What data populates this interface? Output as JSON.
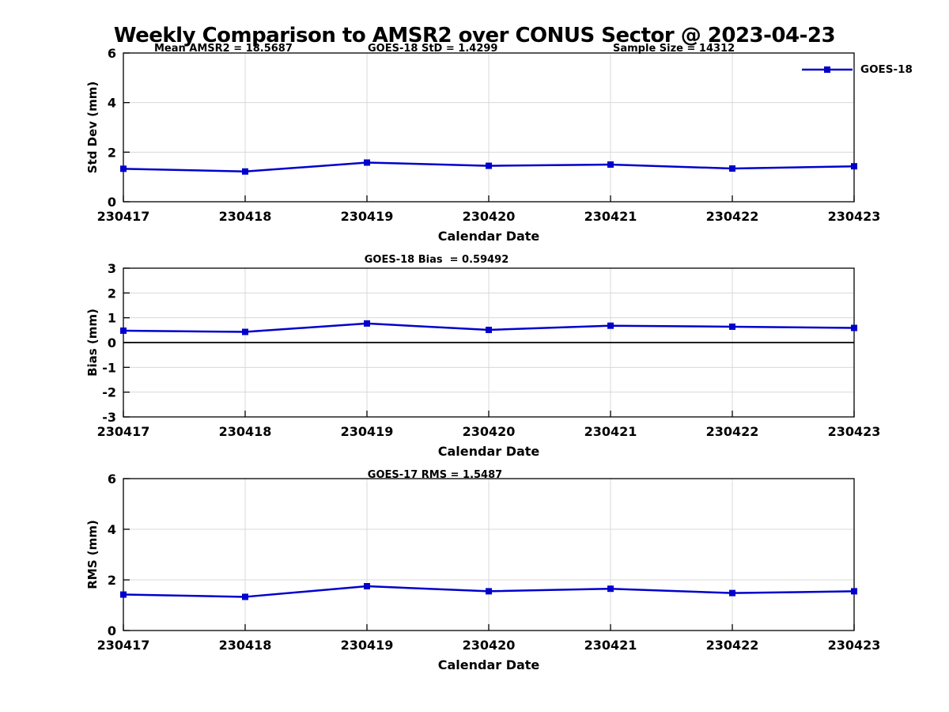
{
  "figure_title": "Weekly Comparison to AMSR2 over CONUS Sector @ 2023-04-23",
  "annotations": {
    "mean_amsr2": "Mean AMSR2 = 18.5687",
    "goes18_std": "GOES-18 StD = 1.4299",
    "sample_size": "Sample Size = 14312"
  },
  "legend": {
    "label": "GOES-18",
    "line_color": "#0000cc",
    "marker": "filled-square"
  },
  "colors": {
    "series_blue": "#0000cc",
    "gridline": "#d8d8d8",
    "axis": "#000000"
  },
  "chart_data": [
    {
      "type": "line",
      "title": "",
      "xlabel": "Calendar Date",
      "ylabel": "Std Dev (mm)",
      "categories": [
        "230417",
        "230418",
        "230419",
        "230420",
        "230421",
        "230422",
        "230423"
      ],
      "series": [
        {
          "name": "GOES-18",
          "color": "#0000cc",
          "marker": "square",
          "values": [
            1.33,
            1.22,
            1.58,
            1.45,
            1.5,
            1.34,
            1.43
          ]
        }
      ],
      "ylim": [
        0,
        6
      ],
      "yticks": [
        0,
        2,
        4,
        6
      ],
      "grid": true,
      "zero_line": false,
      "legend_position": "top-right-outside"
    },
    {
      "type": "line",
      "title": "GOES-18 Bias  = 0.59492",
      "xlabel": "Calendar Date",
      "ylabel": "Bias (mm)",
      "categories": [
        "230417",
        "230418",
        "230419",
        "230420",
        "230421",
        "230422",
        "230423"
      ],
      "series": [
        {
          "name": "GOES-18",
          "color": "#0000cc",
          "marker": "square",
          "values": [
            0.48,
            0.43,
            0.77,
            0.51,
            0.68,
            0.64,
            0.59
          ]
        }
      ],
      "ylim": [
        -3,
        3
      ],
      "yticks": [
        -3,
        -2,
        -1,
        0,
        1,
        2,
        3
      ],
      "grid": true,
      "zero_line": true,
      "legend_position": "none"
    },
    {
      "type": "line",
      "title": "GOES-17 RMS = 1.5487",
      "xlabel": "Calendar Date",
      "ylabel": "RMS (mm)",
      "categories": [
        "230417",
        "230418",
        "230419",
        "230420",
        "230421",
        "230422",
        "230423"
      ],
      "series": [
        {
          "name": "GOES-18",
          "color": "#0000cc",
          "marker": "square",
          "values": [
            1.42,
            1.33,
            1.75,
            1.55,
            1.65,
            1.48,
            1.55
          ]
        }
      ],
      "ylim": [
        0,
        6
      ],
      "yticks": [
        0,
        2,
        4,
        6
      ],
      "grid": true,
      "zero_line": false,
      "legend_position": "none"
    }
  ]
}
